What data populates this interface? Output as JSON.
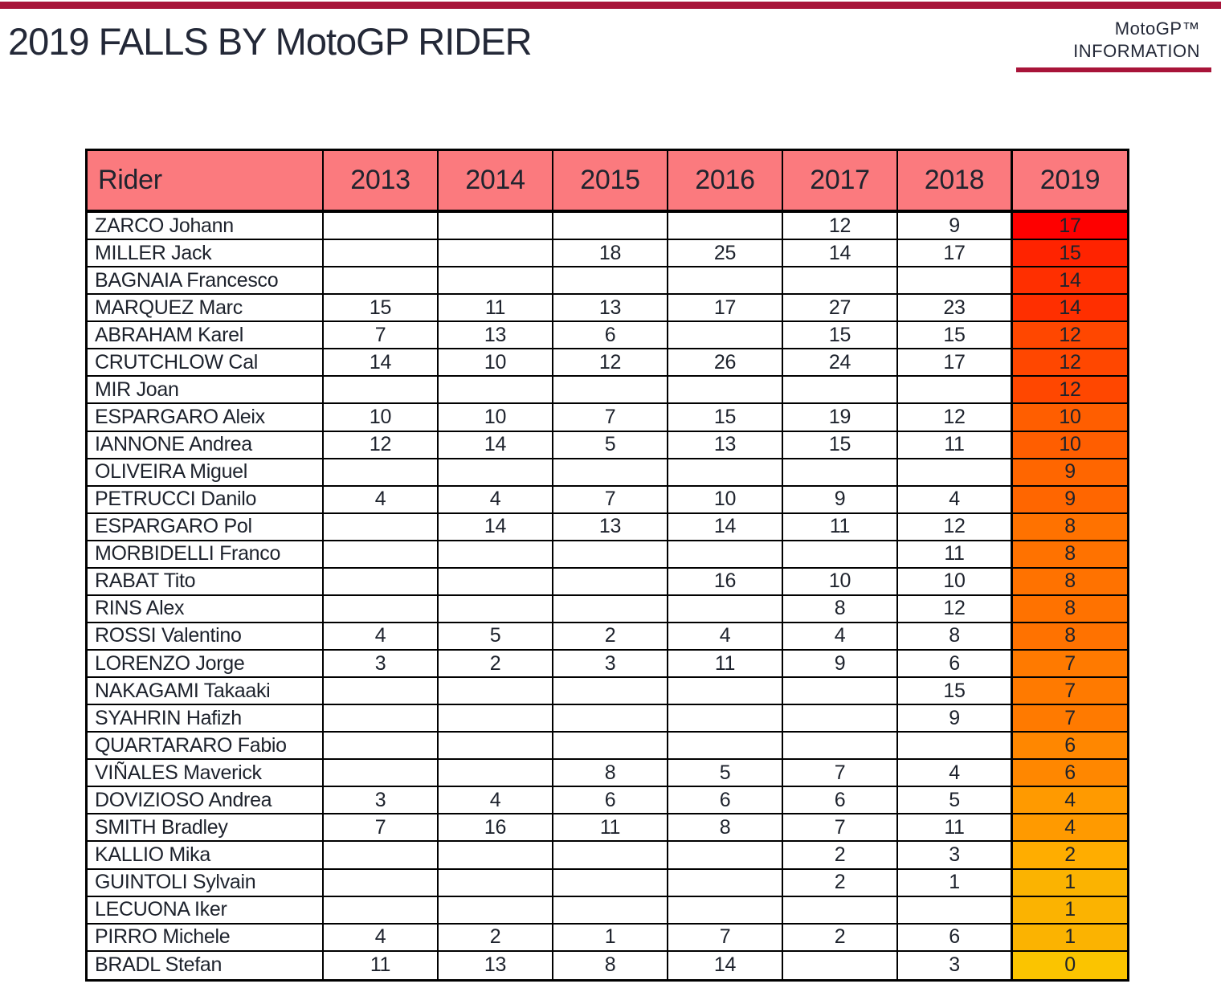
{
  "page": {
    "title": "2019 FALLS BY MotoGP RIDER",
    "brand_line1": "MotoGP™",
    "brand_line2": "INFORMATION",
    "accent_color": "#A81439",
    "text_color": "#232837"
  },
  "chart_data": {
    "type": "table",
    "title": "2019 FALLS BY MotoGP RIDER",
    "columns": [
      "Rider",
      "2013",
      "2014",
      "2015",
      "2016",
      "2017",
      "2018",
      "2019"
    ],
    "header_bg": "#FB7A7E",
    "grid": true,
    "rows": [
      {
        "rider": "ZARCO Johann",
        "falls": [
          null,
          null,
          null,
          null,
          12,
          9
        ],
        "falls_2019": 17
      },
      {
        "rider": "MILLER Jack",
        "falls": [
          null,
          null,
          18,
          25,
          14,
          17
        ],
        "falls_2019": 15
      },
      {
        "rider": "BAGNAIA Francesco",
        "falls": [
          null,
          null,
          null,
          null,
          null,
          null
        ],
        "falls_2019": 14
      },
      {
        "rider": "MARQUEZ Marc",
        "falls": [
          15,
          11,
          13,
          17,
          27,
          23
        ],
        "falls_2019": 14
      },
      {
        "rider": "ABRAHAM Karel",
        "falls": [
          7,
          13,
          6,
          null,
          15,
          15
        ],
        "falls_2019": 12
      },
      {
        "rider": "CRUTCHLOW Cal",
        "falls": [
          14,
          10,
          12,
          26,
          24,
          17
        ],
        "falls_2019": 12
      },
      {
        "rider": "MIR Joan",
        "falls": [
          null,
          null,
          null,
          null,
          null,
          null
        ],
        "falls_2019": 12
      },
      {
        "rider": "ESPARGARO Aleix",
        "falls": [
          10,
          10,
          7,
          15,
          19,
          12
        ],
        "falls_2019": 10
      },
      {
        "rider": "IANNONE Andrea",
        "falls": [
          12,
          14,
          5,
          13,
          15,
          11
        ],
        "falls_2019": 10
      },
      {
        "rider": "OLIVEIRA Miguel",
        "falls": [
          null,
          null,
          null,
          null,
          null,
          null
        ],
        "falls_2019": 9
      },
      {
        "rider": "PETRUCCI Danilo",
        "falls": [
          4,
          4,
          7,
          10,
          9,
          4
        ],
        "falls_2019": 9
      },
      {
        "rider": "ESPARGARO Pol",
        "falls": [
          null,
          14,
          13,
          14,
          11,
          12
        ],
        "falls_2019": 8
      },
      {
        "rider": "MORBIDELLI Franco",
        "falls": [
          null,
          null,
          null,
          null,
          null,
          11
        ],
        "falls_2019": 8
      },
      {
        "rider": "RABAT Tito",
        "falls": [
          null,
          null,
          null,
          16,
          10,
          10
        ],
        "falls_2019": 8
      },
      {
        "rider": "RINS Alex",
        "falls": [
          null,
          null,
          null,
          null,
          8,
          12
        ],
        "falls_2019": 8
      },
      {
        "rider": "ROSSI Valentino",
        "falls": [
          4,
          5,
          2,
          4,
          4,
          8
        ],
        "falls_2019": 8
      },
      {
        "rider": "LORENZO Jorge",
        "falls": [
          3,
          2,
          3,
          11,
          9,
          6
        ],
        "falls_2019": 7
      },
      {
        "rider": "NAKAGAMI Takaaki",
        "falls": [
          null,
          null,
          null,
          null,
          null,
          15
        ],
        "falls_2019": 7
      },
      {
        "rider": "SYAHRIN Hafizh",
        "falls": [
          null,
          null,
          null,
          null,
          null,
          9
        ],
        "falls_2019": 7
      },
      {
        "rider": "QUARTARARO Fabio",
        "falls": [
          null,
          null,
          null,
          null,
          null,
          null
        ],
        "falls_2019": 6
      },
      {
        "rider": "VIÑALES Maverick",
        "falls": [
          null,
          null,
          8,
          5,
          7,
          4
        ],
        "falls_2019": 6
      },
      {
        "rider": "DOVIZIOSO Andrea",
        "falls": [
          3,
          4,
          6,
          6,
          6,
          5
        ],
        "falls_2019": 4
      },
      {
        "rider": "SMITH Bradley",
        "falls": [
          7,
          16,
          11,
          8,
          7,
          11
        ],
        "falls_2019": 4
      },
      {
        "rider": "KALLIO Mika",
        "falls": [
          null,
          null,
          null,
          null,
          2,
          3
        ],
        "falls_2019": 2
      },
      {
        "rider": "GUINTOLI Sylvain",
        "falls": [
          null,
          null,
          null,
          null,
          2,
          1
        ],
        "falls_2019": 1
      },
      {
        "rider": "LECUONA Iker",
        "falls": [
          null,
          null,
          null,
          null,
          null,
          null
        ],
        "falls_2019": 1
      },
      {
        "rider": "PIRRO Michele",
        "falls": [
          4,
          2,
          1,
          7,
          2,
          6
        ],
        "falls_2019": 1
      },
      {
        "rider": "BRADL Stefan",
        "falls": [
          11,
          13,
          8,
          14,
          null,
          3
        ],
        "falls_2019": 0
      }
    ],
    "conditional_formatting": {
      "column": "2019",
      "scale": "red-to-gold",
      "colors_by_value": {
        "17": "#FE0000",
        "15": "#FF2300",
        "14": "#FF2F00",
        "12": "#FF4700",
        "10": "#FF5E00",
        "9": "#FF6600",
        "8": "#FF7200",
        "7": "#FF7A00",
        "6": "#FF8700",
        "4": "#FF9A00",
        "2": "#FFAD00",
        "1": "#FBB301",
        "0": "#FBC400"
      }
    }
  }
}
